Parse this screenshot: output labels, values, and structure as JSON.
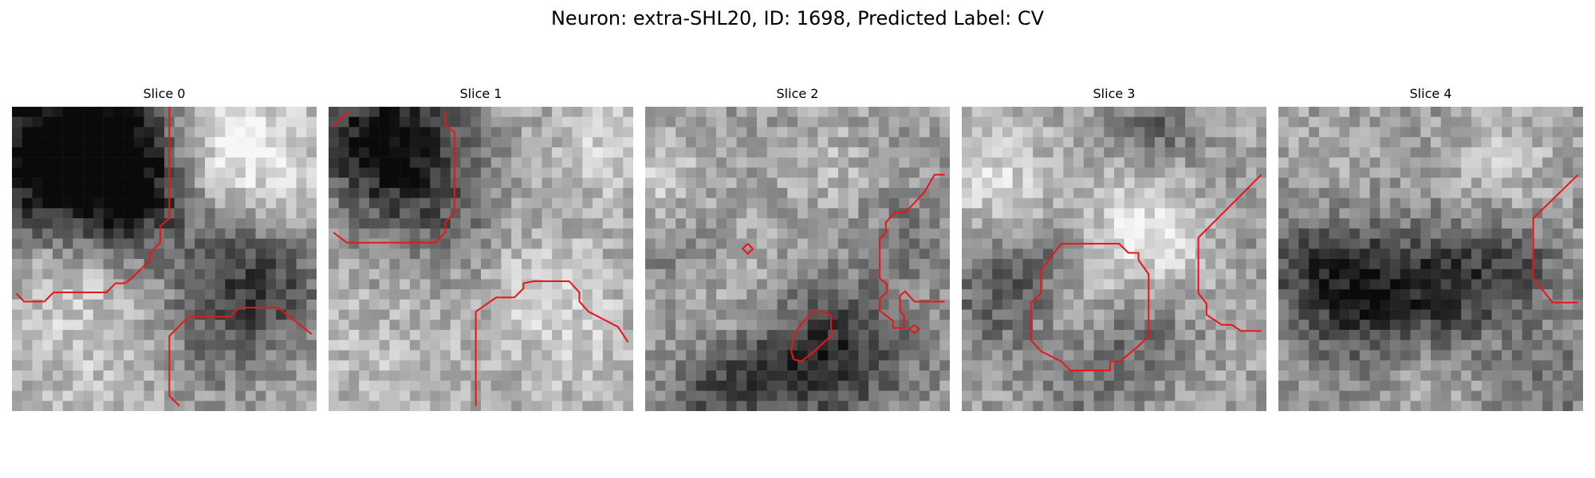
{
  "figure": {
    "title": "Neuron: extra-SHL20, ID: 1698, Predicted Label: CV"
  },
  "panels": [
    {
      "title": "Slice 0"
    },
    {
      "title": "Slice 1"
    },
    {
      "title": "Slice 2"
    },
    {
      "title": "Slice 3"
    },
    {
      "title": "Slice 4"
    }
  ],
  "colors": {
    "contour": "#e8161a",
    "background": "#ffffff"
  }
}
